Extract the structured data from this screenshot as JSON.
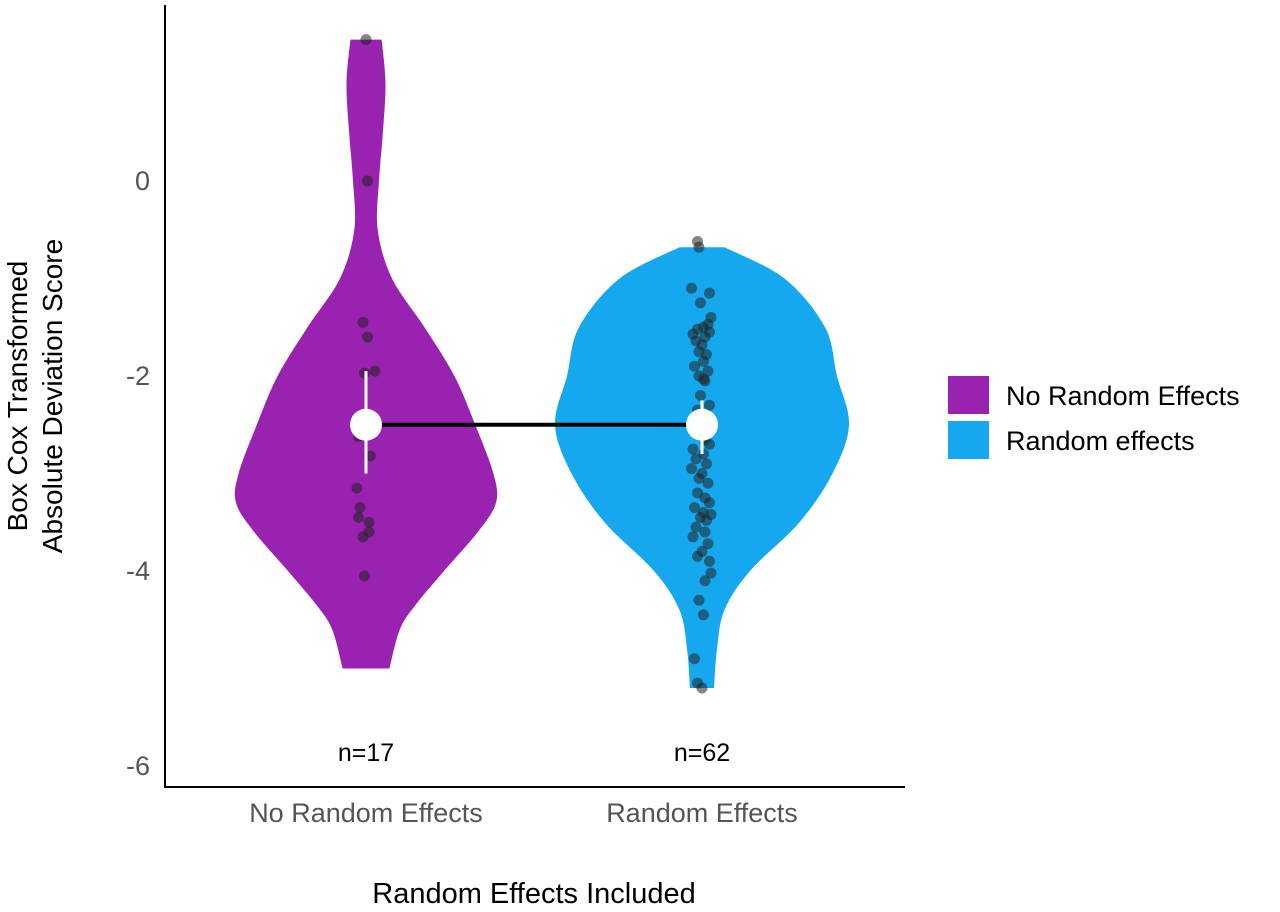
{
  "chart_data": {
    "type": "violin",
    "title": "",
    "xlabel": "Random Effects Included",
    "ylabel_lines": [
      "Box Cox Transformed",
      "Absolute Deviation Score"
    ],
    "ylim": [
      -6.2,
      1.8
    ],
    "yticks": [
      0,
      -2,
      -4,
      -6
    ],
    "ytick_labels": [
      "0",
      "-2",
      "-4",
      "-6"
    ],
    "categories": [
      "No Random Effects",
      "Random Effects"
    ],
    "legend": {
      "placement": "right",
      "entries": [
        {
          "label": "No Random Effects",
          "color": "#9922B0"
        },
        {
          "label": "Random effects",
          "color": "#16A8EE"
        }
      ]
    },
    "colors": {
      "no_random": "#9922B0",
      "random": "#16A8EE",
      "points": "#222222",
      "mean_marker": "#ffffff",
      "connector": "#000000"
    },
    "violins": [
      {
        "category": "No Random Effects",
        "n_label": "n=17",
        "mean": -2.5,
        "ci": [
          -3.0,
          -1.95
        ],
        "profile": [
          [
            1.45,
            0.12
          ],
          [
            1.0,
            0.15
          ],
          [
            0.5,
            0.13
          ],
          [
            0.0,
            0.1
          ],
          [
            -0.5,
            0.09
          ],
          [
            -1.0,
            0.2
          ],
          [
            -1.5,
            0.45
          ],
          [
            -2.0,
            0.68
          ],
          [
            -2.5,
            0.84
          ],
          [
            -3.0,
            0.98
          ],
          [
            -3.3,
            1.0
          ],
          [
            -3.6,
            0.86
          ],
          [
            -4.0,
            0.6
          ],
          [
            -4.35,
            0.38
          ],
          [
            -4.6,
            0.26
          ],
          [
            -5.0,
            0.18
          ]
        ],
        "points": [
          [
            0.0,
            1.45
          ],
          [
            0.01,
            0.0
          ],
          [
            -0.02,
            -1.45
          ],
          [
            0.01,
            -1.6
          ],
          [
            -0.01,
            -1.97
          ],
          [
            0.06,
            -1.95
          ],
          [
            0.01,
            -2.5
          ],
          [
            0.04,
            -2.6
          ],
          [
            -0.05,
            -2.62
          ],
          [
            0.03,
            -2.82
          ],
          [
            -0.06,
            -3.15
          ],
          [
            -0.04,
            -3.35
          ],
          [
            -0.05,
            -3.45
          ],
          [
            0.02,
            -3.5
          ],
          [
            0.02,
            -3.6
          ],
          [
            -0.02,
            -3.65
          ],
          [
            -0.01,
            -4.05
          ]
        ]
      },
      {
        "category": "Random Effects",
        "n_label": "n=62",
        "mean": -2.5,
        "ci": [
          -2.8,
          -2.25
        ],
        "profile": [
          [
            -0.68,
            0.15
          ],
          [
            -1.0,
            0.55
          ],
          [
            -1.5,
            0.82
          ],
          [
            -2.0,
            0.9
          ],
          [
            -2.5,
            0.98
          ],
          [
            -3.0,
            0.87
          ],
          [
            -3.5,
            0.65
          ],
          [
            -4.0,
            0.32
          ],
          [
            -4.4,
            0.15
          ],
          [
            -4.8,
            0.1
          ],
          [
            -5.2,
            0.08
          ]
        ],
        "points": [
          [
            -0.03,
            -0.62
          ],
          [
            -0.02,
            -0.68
          ],
          [
            -0.07,
            -1.1
          ],
          [
            0.05,
            -1.15
          ],
          [
            -0.01,
            -1.25
          ],
          [
            0.06,
            -1.4
          ],
          [
            0.04,
            -1.47
          ],
          [
            0.01,
            -1.5
          ],
          [
            -0.03,
            -1.52
          ],
          [
            0.05,
            -1.55
          ],
          [
            -0.06,
            -1.57
          ],
          [
            0.02,
            -1.6
          ],
          [
            -0.04,
            -1.64
          ],
          [
            0.0,
            -1.68
          ],
          [
            -0.02,
            -1.75
          ],
          [
            0.03,
            -1.78
          ],
          [
            0.01,
            -1.85
          ],
          [
            -0.05,
            -1.9
          ],
          [
            0.04,
            -1.95
          ],
          [
            -0.02,
            -2.0
          ],
          [
            0.01,
            -2.03
          ],
          [
            0.02,
            -2.05
          ],
          [
            -0.01,
            -2.2
          ],
          [
            0.05,
            -2.3
          ],
          [
            -0.03,
            -2.35
          ],
          [
            0.03,
            -2.4
          ],
          [
            -0.05,
            -2.45
          ],
          [
            0.0,
            -2.5
          ],
          [
            0.04,
            -2.55
          ],
          [
            -0.02,
            -2.6
          ],
          [
            0.02,
            -2.65
          ],
          [
            0.05,
            -2.7
          ],
          [
            -0.06,
            -2.75
          ],
          [
            0.01,
            -2.8
          ],
          [
            -0.04,
            -2.85
          ],
          [
            0.03,
            -2.9
          ],
          [
            -0.07,
            -2.95
          ],
          [
            0.0,
            -3.0
          ],
          [
            -0.02,
            -3.05
          ],
          [
            0.04,
            -3.1
          ],
          [
            -0.03,
            -3.2
          ],
          [
            0.02,
            -3.25
          ],
          [
            0.05,
            -3.3
          ],
          [
            -0.05,
            -3.35
          ],
          [
            0.01,
            -3.4
          ],
          [
            0.06,
            -3.42
          ],
          [
            -0.01,
            -3.45
          ],
          [
            0.03,
            -3.48
          ],
          [
            -0.04,
            -3.55
          ],
          [
            0.02,
            -3.6
          ],
          [
            -0.06,
            -3.65
          ],
          [
            0.04,
            -3.72
          ],
          [
            0.0,
            -3.8
          ],
          [
            -0.03,
            -3.85
          ],
          [
            0.05,
            -3.9
          ],
          [
            0.06,
            -4.02
          ],
          [
            0.02,
            -4.1
          ],
          [
            -0.02,
            -4.3
          ],
          [
            0.01,
            -4.45
          ],
          [
            -0.05,
            -4.9
          ],
          [
            -0.03,
            -5.15
          ],
          [
            0.0,
            -5.2
          ]
        ]
      }
    ]
  }
}
